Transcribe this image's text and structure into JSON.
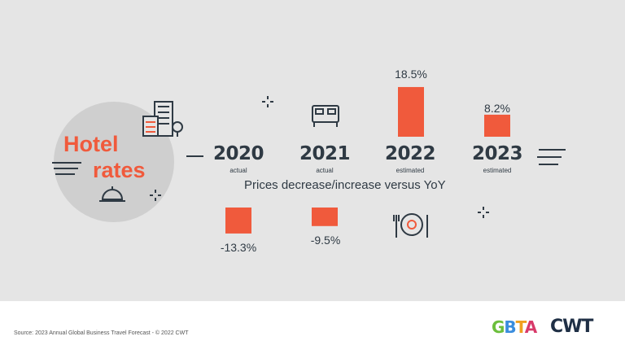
{
  "title": {
    "line1": "Hotel",
    "line2": "rates"
  },
  "caption": "Prices decrease/increase versus YoY",
  "source": "Source: 2023 Annual Global Business Travel Forecast - © 2022 CWT",
  "logos": {
    "gbta": "GBTA",
    "cwt": "CWT"
  },
  "colors": {
    "accent": "#f05a3c",
    "text": "#2f3a44",
    "panel": "#e5e5e5"
  },
  "chart_data": {
    "type": "bar",
    "categories": [
      "2020",
      "2021",
      "2022",
      "2023"
    ],
    "category_notes": [
      "actual",
      "actual",
      "estimated",
      "estimated"
    ],
    "values": [
      -13.3,
      -9.5,
      18.5,
      8.2
    ],
    "value_labels": [
      "-13.3%",
      "-9.5%",
      "18.5%",
      "8.2%"
    ],
    "title": "",
    "xlabel": "Prices decrease/increase versus YoY",
    "ylabel": "",
    "grid": false
  }
}
